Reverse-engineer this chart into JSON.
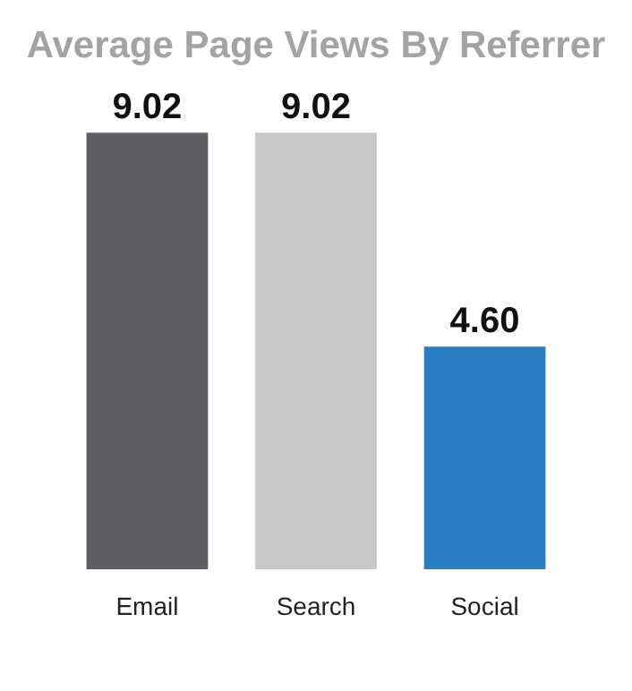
{
  "chart_data": {
    "type": "bar",
    "title": "Average Page Views By Referrer",
    "categories": [
      "Email",
      "Search",
      "Social"
    ],
    "values": [
      9.02,
      9.02,
      4.6
    ],
    "value_labels": [
      "9.02",
      "9.02",
      "4.60"
    ],
    "colors": [
      "#5e5f63",
      "#c7c8ca",
      "#2b7ec2"
    ]
  }
}
